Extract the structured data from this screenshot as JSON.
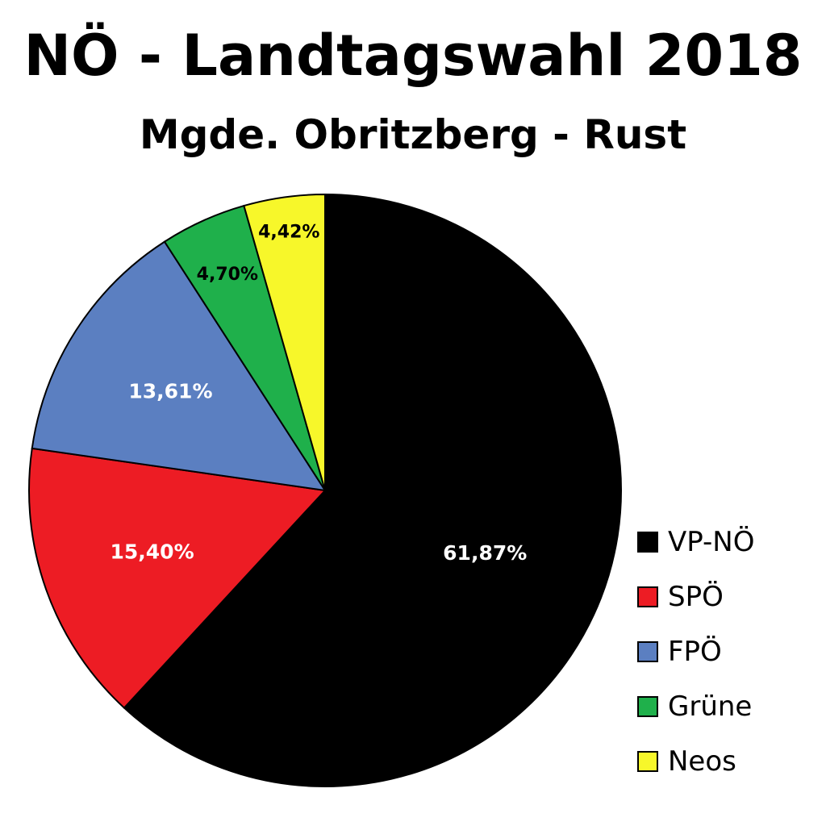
{
  "chart_data": {
    "type": "pie",
    "title": "NÖ - Landtagswahl 2018",
    "subtitle": "Mgde. Obritzberg - Rust",
    "slices": [
      {
        "name": "VP-NÖ",
        "value": 61.87,
        "label": "61,87%",
        "color": "#000000",
        "label_color": "#ffffff"
      },
      {
        "name": "SPÖ",
        "value": 15.4,
        "label": "15,40%",
        "color": "#ed1c24",
        "label_color": "#ffffff"
      },
      {
        "name": "FPÖ",
        "value": 13.61,
        "label": "13,61%",
        "color": "#5b7fc1",
        "label_color": "#ffffff"
      },
      {
        "name": "Grüne",
        "value": 4.7,
        "label": "4,70%",
        "color": "#1fb04b",
        "label_color": "#000000"
      },
      {
        "name": "Neos",
        "value": 4.42,
        "label": "4,42%",
        "color": "#f7f72a",
        "label_color": "#000000"
      }
    ],
    "legend_position": "bottom-right"
  }
}
